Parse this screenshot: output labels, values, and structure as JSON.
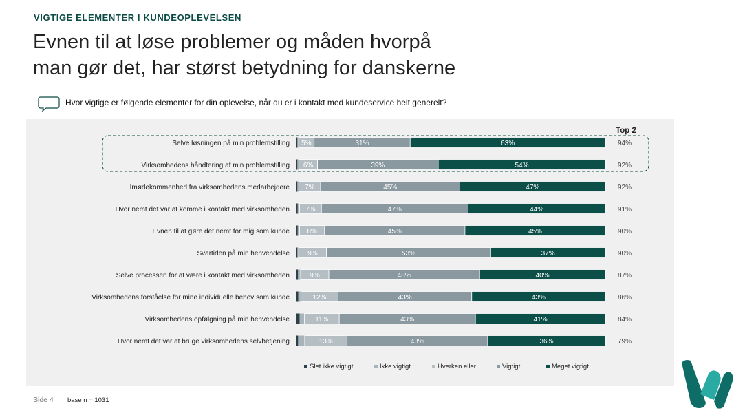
{
  "header": {
    "kicker": "VIGTIGE ELEMENTER I KUNDEOPLEVELSEN",
    "title_line1": "Evnen til at løse problemer og måden hvorpå",
    "title_line2": "man gør det, har størst betydning for danskerne"
  },
  "question": {
    "text": "Hvor vigtige er følgende elementer for din oplevelse, når du er i kontakt med kundeservice helt generelt?",
    "icon": "speech-bubble-icon"
  },
  "footer": {
    "page_label": "Side 4",
    "base_label": "base n = 1031"
  },
  "colors": {
    "slet_ikke": "#2d3f48",
    "ikke": "#a8b4ba",
    "hverken": "#b5bec3",
    "vigtigt": "#8a989f",
    "meget": "#0c4e48",
    "kicker": "#0d4b45",
    "logo_dark": "#0f6d68",
    "logo_light": "#29aaa3"
  },
  "chart_data": {
    "type": "bar",
    "orientation": "horizontal-stacked-100",
    "top2_header": "Top 2",
    "highlighted_rows": [
      0,
      1
    ],
    "categories": [
      "Selve løsningen på min problemstilling",
      "Virksomhedens håndtering af min problemstilling",
      "Imødekommenhed fra virksomhedens medarbejdere",
      "Hvor nemt det var at komme i kontakt med virksomheden",
      "Evnen til at gøre det nemt for mig som kunde",
      "Svartiden på min henvendelse",
      "Selve processen for at være i kontakt med virksomheden",
      "Virksomhedens forståelse for mine individuelle behov som kunde",
      "Virksomhedens opfølgning på min henvendelse",
      "Hvor nemt det var at bruge virksomhedens selvbetjening"
    ],
    "series": [
      {
        "name": "Slet ikke vigtigt",
        "color": "#2d3f48",
        "values": [
          0.3,
          0.3,
          0.3,
          0.4,
          0.4,
          0.3,
          0.5,
          0.6,
          1.0,
          0.5
        ]
      },
      {
        "name": "Ikke vigtigt",
        "color": "#a8b4ba",
        "values": [
          0.4,
          0.5,
          0.5,
          0.6,
          0.6,
          0.4,
          0.8,
          0.8,
          1.5,
          2.0
        ]
      },
      {
        "name": "Hverken eller",
        "color": "#b5bec3",
        "values": [
          5,
          6,
          7,
          7,
          8,
          9,
          9,
          12,
          11,
          13
        ]
      },
      {
        "name": "Vigtigt",
        "color": "#8a989f",
        "values": [
          31,
          39,
          45,
          47,
          45,
          53,
          48,
          43,
          43,
          43
        ]
      },
      {
        "name": "Meget vigtigt",
        "color": "#0c4e48",
        "values": [
          63,
          54,
          47,
          44,
          45,
          37,
          40,
          43,
          41,
          36
        ]
      }
    ],
    "data_labels": {
      "Hverken eller": [
        "5%",
        "6%",
        "7%",
        "7%",
        "8%",
        "9%",
        "9%",
        "12%",
        "11%",
        "13%"
      ],
      "Vigtigt": [
        "31%",
        "39%",
        "45%",
        "47%",
        "45%",
        "53%",
        "48%",
        "43%",
        "43%",
        "43%"
      ],
      "Meget vigtigt": [
        "63%",
        "54%",
        "47%",
        "44%",
        "45%",
        "37%",
        "40%",
        "43%",
        "41%",
        "36%"
      ]
    },
    "top2": [
      "94%",
      "92%",
      "92%",
      "91%",
      "90%",
      "90%",
      "87%",
      "86%",
      "84%",
      "79%"
    ],
    "legend": [
      "Slet ikke vigtigt",
      "Ikke vigtigt",
      "Hverken eller",
      "Vigtigt",
      "Meget vigtigt"
    ],
    "legend_position": "bottom",
    "xlim": [
      0,
      100
    ],
    "unit": "%"
  }
}
